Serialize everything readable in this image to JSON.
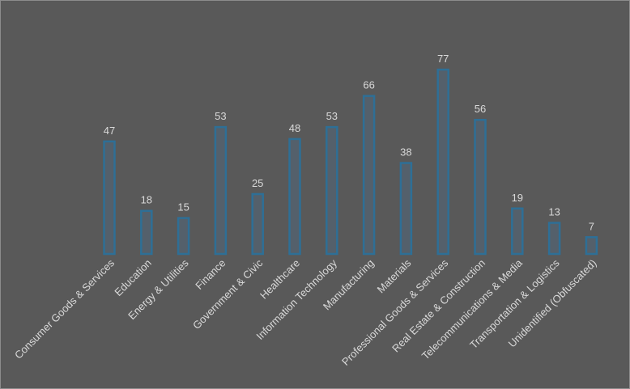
{
  "chart_data": {
    "type": "bar",
    "categories": [
      "Consumer Goods & Services",
      "Education",
      "Energy & Utilities",
      "Finance",
      "Government & Civic",
      "Healthcare",
      "Information Technology",
      "Manufacturing",
      "Materials",
      "Professional Goods & Services",
      "Real Estate & Construction",
      "Telecommunications & Media",
      "Transportation & Logistics",
      "Unidentified (Obfuscated)"
    ],
    "values": [
      47,
      18,
      15,
      53,
      25,
      48,
      53,
      66,
      38,
      77,
      56,
      19,
      13,
      7
    ],
    "title": "",
    "xlabel": "",
    "ylabel": "",
    "ylim": [
      0,
      80
    ],
    "grid": false,
    "legend": "none",
    "data_labels": true,
    "colors": {
      "bar_outline": "#2e6f96",
      "bar_fill": "#54606b",
      "background": "#595959",
      "text": "#d9d9d9"
    }
  }
}
